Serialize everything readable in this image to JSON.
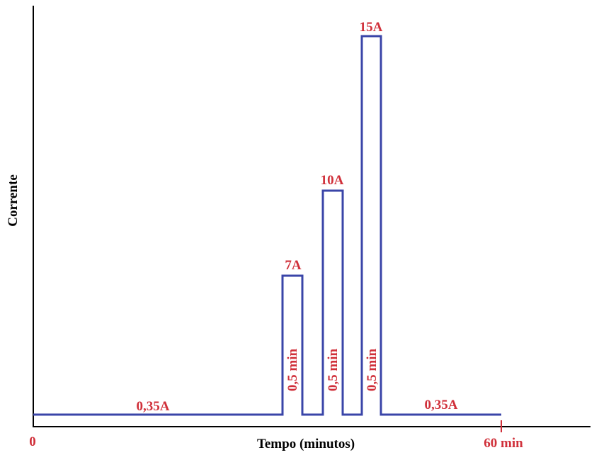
{
  "axes": {
    "y_label": "Corrente",
    "x_label": "Tempo (minutos)",
    "x_start": "0",
    "x_end": "60 min"
  },
  "pulses": [
    {
      "label": "7A",
      "duration": "0,5 min"
    },
    {
      "label": "10A",
      "duration": "0,5 min"
    },
    {
      "label": "15A",
      "duration": "0,5 min"
    }
  ],
  "baseline_labels": [
    "0,35A",
    "0,35A"
  ]
}
